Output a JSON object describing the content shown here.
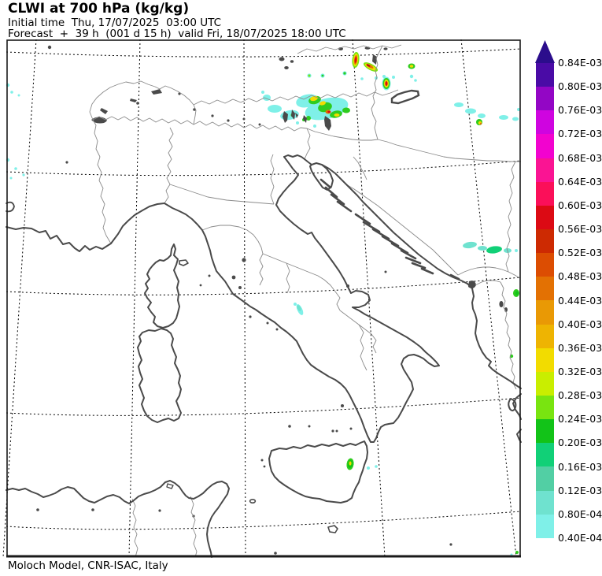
{
  "header": {
    "title": "CLWI at 700 hPa (kg/kg)",
    "line1": "Initial time  Thu, 17/07/2025  03:00 UTC",
    "line2": "Forecast  +  39 h  (001 d 15 h)  valid Fri, 18/07/2025 18:00 UTC"
  },
  "footer": {
    "credit": "Moloch Model, CNR-ISAC, Italy"
  },
  "colorbar": {
    "arrow_color": "#2b0d8c",
    "units": "kg/kg",
    "labels": [
      "0.84E-03",
      "0.80E-03",
      "0.76E-03",
      "0.72E-03",
      "0.68E-03",
      "0.64E-03",
      "0.60E-03",
      "0.56E-03",
      "0.52E-03",
      "0.48E-03",
      "0.44E-03",
      "0.40E-03",
      "0.36E-03",
      "0.32E-03",
      "0.28E-03",
      "0.24E-03",
      "0.20E-03",
      "0.16E-03",
      "0.12E-03",
      "0.80E-04",
      "0.40E-04"
    ],
    "colors": [
      "#4a0ba6",
      "#9306c5",
      "#cf04e0",
      "#f203cf",
      "#fa1493",
      "#fb0f59",
      "#dc0a14",
      "#cd2a02",
      "#dc4d02",
      "#e37103",
      "#e99905",
      "#eeb402",
      "#f2dc00",
      "#c9ee00",
      "#79e410",
      "#12c318",
      "#11d077",
      "#52cfa4",
      "#6fe2cf",
      "#7ff0e8"
    ]
  },
  "map": {
    "region": "Italy and central Mediterranean",
    "grid": "dashed lat-lon graticule",
    "coast_color": "#4a4a4a",
    "border_color": "#8a8a8a",
    "overlay_colors": {
      "light_cyan": "#7ff0e8",
      "turquoise": "#6fe2cf",
      "spring_green": "#11d077",
      "green": "#2ecc1e",
      "yellow_green": "#79e410",
      "yellow": "#f2dc00",
      "orange": "#e37103",
      "red": "#dc0a14"
    }
  }
}
